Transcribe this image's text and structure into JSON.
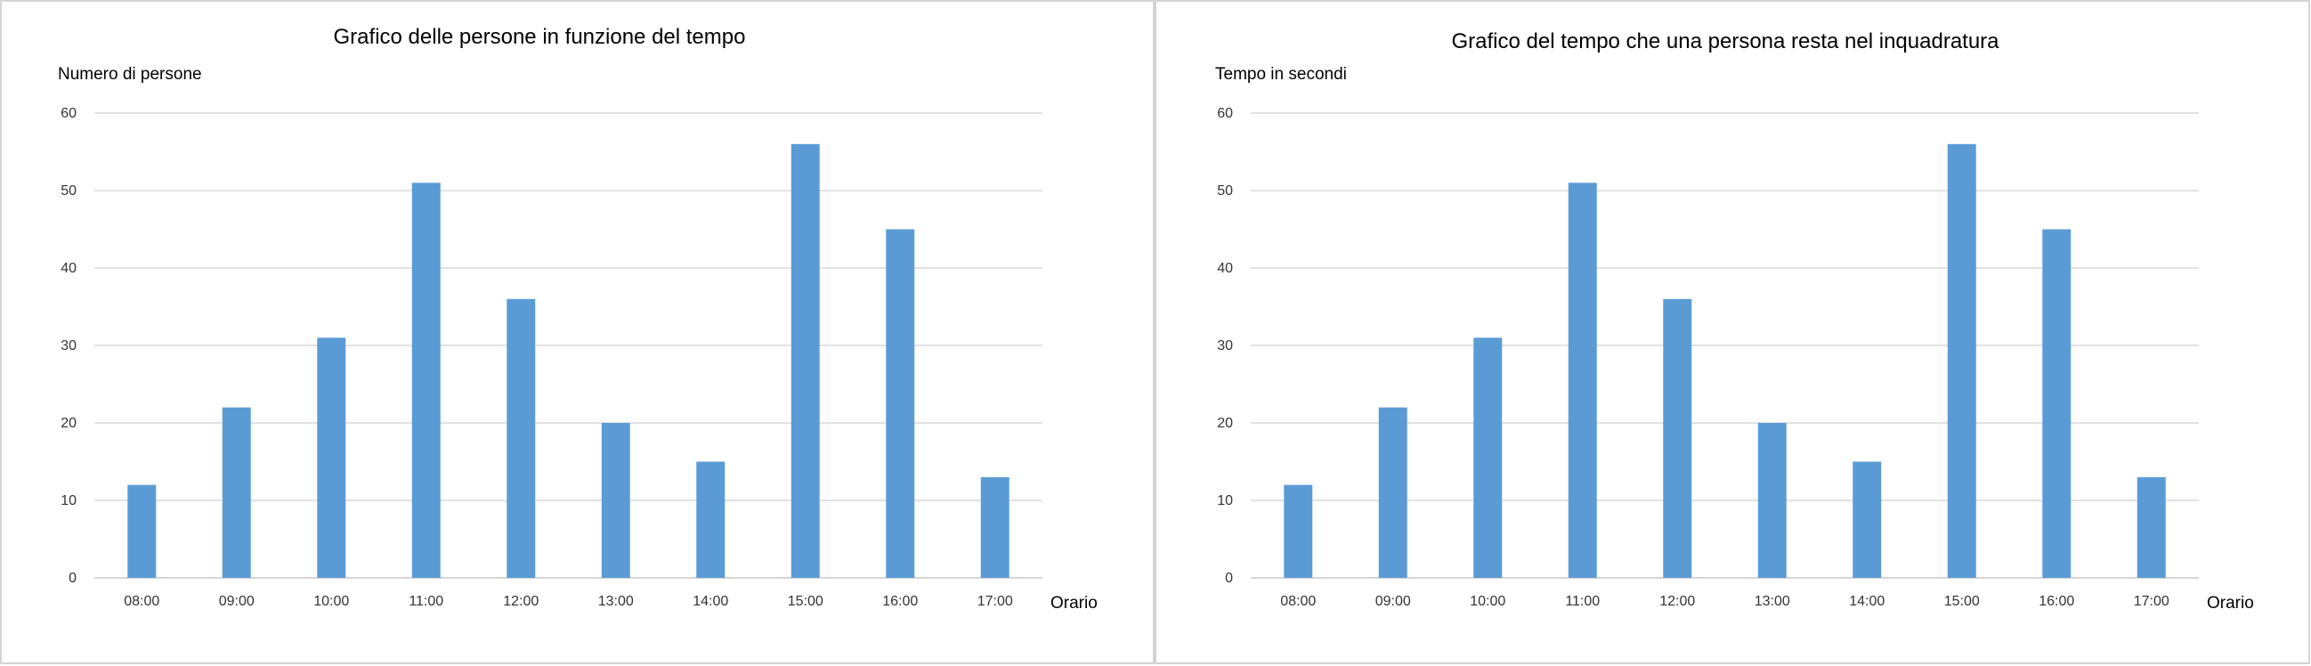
{
  "chart_data": [
    {
      "type": "bar",
      "title": "Grafico delle persone in funzione del tempo",
      "ylabel": "Numero di persone",
      "xlabel": "Orario",
      "categories": [
        "08:00",
        "09:00",
        "10:00",
        "11:00",
        "12:00",
        "13:00",
        "14:00",
        "15:00",
        "16:00",
        "17:00"
      ],
      "values": [
        12,
        22,
        31,
        51,
        36,
        20,
        15,
        56,
        45,
        13
      ],
      "ylim": [
        0,
        60
      ],
      "yticks": [
        0,
        10,
        20,
        30,
        40,
        50,
        60
      ],
      "grid": true,
      "color": "#5b9bd5"
    },
    {
      "type": "bar",
      "title": "Grafico del tempo che una persona resta nel inquadratura",
      "ylabel": "Tempo in secondi",
      "xlabel": "Orario",
      "categories": [
        "08:00",
        "09:00",
        "10:00",
        "11:00",
        "12:00",
        "13:00",
        "14:00",
        "15:00",
        "16:00",
        "17:00"
      ],
      "values": [
        12,
        22,
        31,
        51,
        36,
        20,
        15,
        56,
        45,
        13
      ],
      "ylim": [
        0,
        60
      ],
      "yticks": [
        0,
        10,
        20,
        30,
        40,
        50,
        60
      ],
      "grid": true,
      "color": "#5b9bd5"
    }
  ]
}
